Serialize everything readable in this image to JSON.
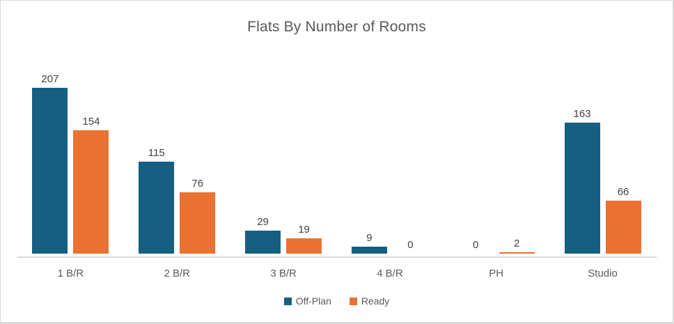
{
  "window": {
    "background_color": "#FFFFFF",
    "border_color": "#D9D9D9"
  },
  "chart_data": {
    "type": "bar",
    "title": "Flats By Number of Rooms",
    "categories": [
      "1 B/R",
      "2 B/R",
      "3 B/R",
      "4 B/R",
      "PH",
      "Studio"
    ],
    "series": [
      {
        "name": "Off-Plan",
        "color": "#156082",
        "values": [
          207,
          115,
          29,
          9,
          0,
          163
        ]
      },
      {
        "name": "Ready",
        "color": "#E97132",
        "values": [
          154,
          76,
          19,
          0,
          2,
          66
        ]
      }
    ],
    "xlabel": "",
    "ylabel": "",
    "ylim": [
      0,
      250
    ],
    "grid": false,
    "data_labels": true,
    "legend_position": "bottom"
  },
  "styles": {
    "title_color": "#595959",
    "data_label_color": "#404040",
    "category_label_color": "#595959",
    "legend_label_color": "#595959",
    "axis_line_color": "#D9D9D9"
  }
}
